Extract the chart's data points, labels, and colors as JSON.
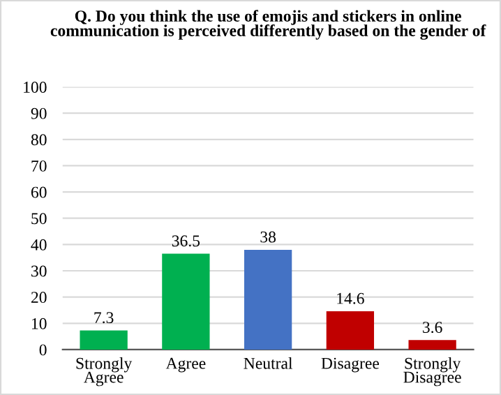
{
  "chart_data": {
    "type": "bar",
    "title": "Q. Do you think the use of emojis and stickers in online communication is perceived differently based on the gender of",
    "categories": [
      "Strongly\nAgree",
      "Agree",
      "Neutral",
      "Disagree",
      "Strongly\nDisagree"
    ],
    "values": [
      7.3,
      36.5,
      38,
      14.6,
      3.6
    ],
    "colors": [
      "#00b050",
      "#00b050",
      "#4472c4",
      "#c00000",
      "#c00000"
    ],
    "ylim": [
      0,
      100
    ],
    "yticks": [
      0,
      10,
      20,
      30,
      40,
      50,
      60,
      70,
      80,
      90,
      100
    ],
    "grid": "y",
    "data_labels": true
  }
}
